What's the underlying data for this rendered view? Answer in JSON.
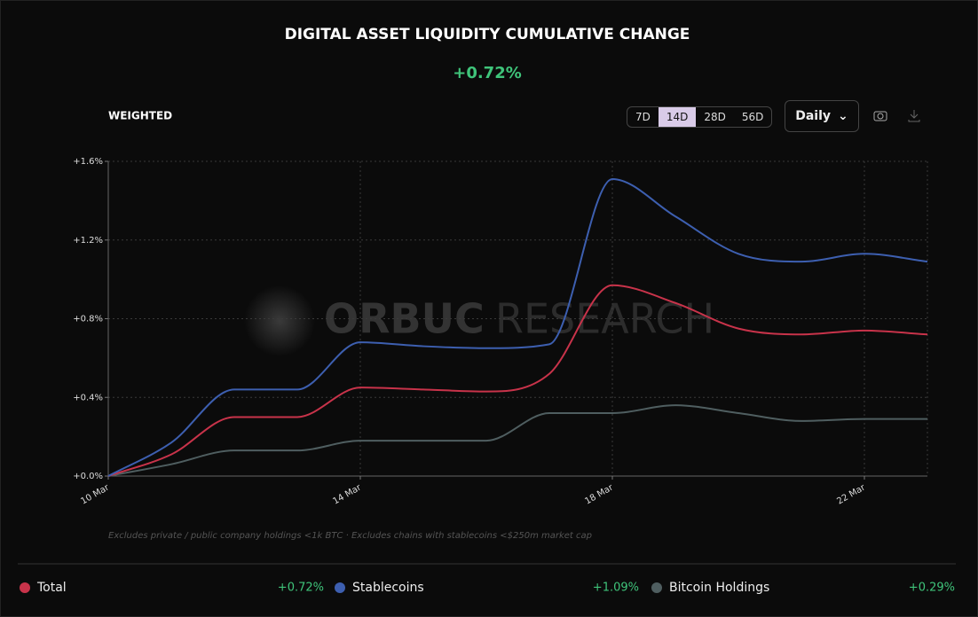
{
  "chart_data": {
    "type": "line",
    "title": "DIGITAL ASSET LIQUIDITY CUMULATIVE CHANGE",
    "headline": {
      "value": 0.72,
      "label": "+0.72%"
    },
    "subtitle": "WEIGHTED",
    "watermark": [
      "ORBUC",
      "RESEARCH"
    ],
    "footnote": "Excludes private / public company holdings <1k BTC · Excludes chains with stablecoins <$250m market cap",
    "categories": [
      "10 Mar",
      null,
      null,
      null,
      "14 Mar",
      null,
      null,
      null,
      "18 Mar",
      null,
      null,
      null,
      "22 Mar",
      null
    ],
    "series": [
      {
        "name": "Total",
        "color": "#c8334a",
        "change": 0.72,
        "change_label": "+0.72%",
        "values": [
          0,
          0.11,
          0.3,
          0.3,
          0.45,
          0.44,
          0.43,
          0.52,
          0.97,
          0.88,
          0.75,
          0.72,
          0.74,
          0.72
        ]
      },
      {
        "name": "Stablecoins",
        "color": "#3d5fb0",
        "change": 1.09,
        "change_label": "+1.09%",
        "values": [
          0,
          0.17,
          0.44,
          0.44,
          0.68,
          0.66,
          0.65,
          0.67,
          1.51,
          1.32,
          1.13,
          1.09,
          1.13,
          1.09
        ]
      },
      {
        "name": "Bitcoin Holdings",
        "color": "#4f5e60",
        "change": 0.29,
        "change_label": "+0.29%",
        "values": [
          0,
          0.06,
          0.13,
          0.13,
          0.18,
          0.18,
          0.18,
          0.32,
          0.32,
          0.36,
          0.32,
          0.28,
          0.29,
          0.29
        ]
      }
    ],
    "ylim": [
      0,
      1.6
    ],
    "yticks": [
      {
        "value": 0,
        "label": "+0.0%"
      },
      {
        "value": 0.4,
        "label": "+0.4%"
      },
      {
        "value": 0.8,
        "label": "+0.8%"
      },
      {
        "value": 1.2,
        "label": "+1.2%"
      },
      {
        "value": 1.6,
        "label": "+1.6%"
      }
    ],
    "grid": true
  },
  "controls": {
    "ranges": [
      "7D",
      "14D",
      "28D",
      "56D"
    ],
    "active_range": 1,
    "interval": "Daily"
  }
}
